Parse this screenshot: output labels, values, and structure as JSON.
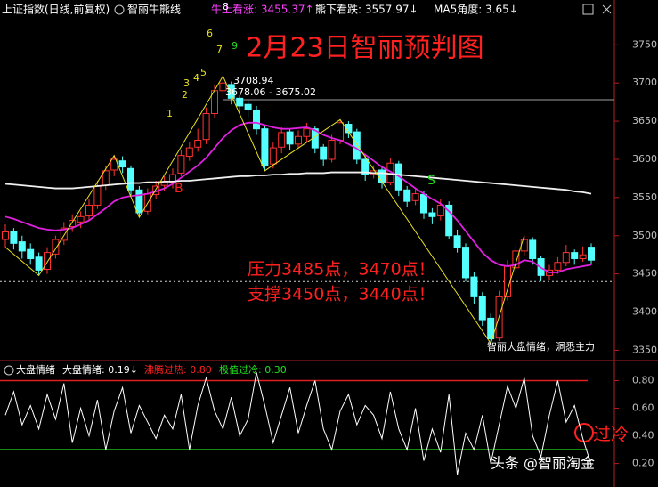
{
  "header": {
    "index_name": "上证指数(日线,前复权)",
    "indicator": "智丽牛熊线",
    "bull": "牛上看涨: 3455.37↑",
    "bear": "熊下看跌: 3557.97↓",
    "ma5": "MA5角度: 3.65↓"
  },
  "chart_data": [
    {
      "type": "candlestick",
      "title": "2月23日智丽预判图",
      "title_color": "#ff2020",
      "ylim": [
        3340,
        3783
      ],
      "yticks": [
        3350,
        3400,
        3450,
        3500,
        3550,
        3600,
        3650,
        3700,
        3750
      ],
      "up_color": "#ff3232",
      "down_color": "#54ffff",
      "ohlc": [
        [
          3495,
          3515,
          3485,
          3505
        ],
        [
          3505,
          3510,
          3482,
          3490
        ],
        [
          3492,
          3500,
          3470,
          3480
        ],
        [
          3482,
          3490,
          3462,
          3470
        ],
        [
          3472,
          3478,
          3448,
          3455
        ],
        [
          3456,
          3485,
          3450,
          3478
        ],
        [
          3476,
          3500,
          3470,
          3495
        ],
        [
          3494,
          3518,
          3488,
          3510
        ],
        [
          3512,
          3528,
          3505,
          3520
        ],
        [
          3518,
          3532,
          3510,
          3525
        ],
        [
          3526,
          3548,
          3520,
          3540
        ],
        [
          3540,
          3572,
          3535,
          3565
        ],
        [
          3566,
          3592,
          3560,
          3585
        ],
        [
          3586,
          3605,
          3578,
          3600
        ],
        [
          3598,
          3604,
          3582,
          3590
        ],
        [
          3588,
          3592,
          3552,
          3560
        ],
        [
          3560,
          3565,
          3524,
          3530
        ],
        [
          3532,
          3562,
          3528,
          3555
        ],
        [
          3554,
          3572,
          3548,
          3565
        ],
        [
          3566,
          3578,
          3558,
          3570
        ],
        [
          3570,
          3588,
          3562,
          3580
        ],
        [
          3582,
          3612,
          3578,
          3605
        ],
        [
          3604,
          3622,
          3598,
          3615
        ],
        [
          3616,
          3640,
          3610,
          3625
        ],
        [
          3626,
          3668,
          3620,
          3660
        ],
        [
          3660,
          3698,
          3655,
          3690
        ],
        [
          3690,
          3709,
          3680,
          3700
        ],
        [
          3698,
          3702,
          3672,
          3680
        ],
        [
          3680,
          3684,
          3660,
          3670
        ],
        [
          3672,
          3678,
          3655,
          3665
        ],
        [
          3664,
          3670,
          3632,
          3640
        ],
        [
          3640,
          3645,
          3585,
          3592
        ],
        [
          3594,
          3622,
          3588,
          3615
        ],
        [
          3616,
          3642,
          3608,
          3635
        ],
        [
          3636,
          3640,
          3612,
          3620
        ],
        [
          3620,
          3638,
          3615,
          3630
        ],
        [
          3630,
          3648,
          3622,
          3640
        ],
        [
          3640,
          3644,
          3608,
          3615
        ],
        [
          3616,
          3620,
          3592,
          3600
        ],
        [
          3600,
          3632,
          3596,
          3625
        ],
        [
          3625,
          3652,
          3620,
          3648
        ],
        [
          3646,
          3650,
          3628,
          3635
        ],
        [
          3636,
          3640,
          3594,
          3600
        ],
        [
          3600,
          3606,
          3572,
          3580
        ],
        [
          3580,
          3592,
          3575,
          3585
        ],
        [
          3586,
          3590,
          3562,
          3570
        ],
        [
          3570,
          3602,
          3566,
          3595
        ],
        [
          3594,
          3598,
          3552,
          3560
        ],
        [
          3560,
          3565,
          3538,
          3545
        ],
        [
          3546,
          3562,
          3540,
          3555
        ],
        [
          3554,
          3558,
          3522,
          3530
        ],
        [
          3530,
          3536,
          3515,
          3525
        ],
        [
          3526,
          3548,
          3520,
          3540
        ],
        [
          3540,
          3545,
          3495,
          3500
        ],
        [
          3500,
          3508,
          3478,
          3485
        ],
        [
          3485,
          3490,
          3440,
          3445
        ],
        [
          3446,
          3452,
          3410,
          3420
        ],
        [
          3420,
          3426,
          3382,
          3390
        ],
        [
          3392,
          3398,
          3359,
          3365
        ],
        [
          3366,
          3428,
          3362,
          3420
        ],
        [
          3420,
          3468,
          3415,
          3460
        ],
        [
          3458,
          3488,
          3452,
          3480
        ],
        [
          3480,
          3500,
          3474,
          3495
        ],
        [
          3494,
          3498,
          3462,
          3470
        ],
        [
          3470,
          3474,
          3440,
          3448
        ],
        [
          3448,
          3462,
          3442,
          3455
        ],
        [
          3455,
          3472,
          3450,
          3465
        ],
        [
          3465,
          3488,
          3460,
          3478
        ],
        [
          3478,
          3482,
          3462,
          3470
        ],
        [
          3470,
          3486,
          3466,
          3475
        ],
        [
          3485,
          3490,
          3462,
          3468
        ]
      ],
      "lines": [
        {
          "color": "#e020e0",
          "values": [
            3525,
            3522,
            3518,
            3514,
            3510,
            3508,
            3507,
            3508,
            3510,
            3515,
            3520,
            3528,
            3536,
            3545,
            3550,
            3552,
            3553,
            3555,
            3558,
            3562,
            3568,
            3576,
            3584,
            3592,
            3602,
            3615,
            3628,
            3638,
            3645,
            3648,
            3648,
            3645,
            3642,
            3640,
            3640,
            3641,
            3642,
            3638,
            3632,
            3628,
            3625,
            3620,
            3614,
            3606,
            3598,
            3590,
            3584,
            3578,
            3570,
            3562,
            3555,
            3548,
            3542,
            3532,
            3520,
            3506,
            3492,
            3478,
            3468,
            3462,
            3460,
            3462,
            3468,
            3466,
            3458,
            3452,
            3452,
            3456,
            3458,
            3460,
            3462
          ]
        },
        {
          "color": "#f0f0f0",
          "values": [
            3568,
            3567,
            3566,
            3565,
            3564,
            3563,
            3562,
            3562,
            3562,
            3563,
            3564,
            3565,
            3566,
            3567,
            3568,
            3569,
            3569,
            3570,
            3570,
            3571,
            3571,
            3572,
            3572,
            3573,
            3574,
            3575,
            3576,
            3577,
            3578,
            3578,
            3579,
            3579,
            3580,
            3580,
            3581,
            3581,
            3582,
            3582,
            3582,
            3583,
            3583,
            3583,
            3583,
            3583,
            3582,
            3582,
            3581,
            3580,
            3579,
            3578,
            3577,
            3576,
            3575,
            3574,
            3573,
            3572,
            3571,
            3570,
            3569,
            3568,
            3567,
            3566,
            3565,
            3564,
            3563,
            3562,
            3561,
            3560,
            3558,
            3557,
            3555
          ]
        }
      ],
      "zigzag": {
        "color": "#e8e020",
        "x": [
          0,
          4,
          13,
          16,
          26,
          31,
          40,
          58,
          62
        ],
        "values": [
          3485,
          3448,
          3605,
          3524,
          3709,
          3585,
          3652,
          3359,
          3500
        ]
      },
      "ref_lines": [
        {
          "value": 3678.06,
          "color": "#a0a0a0",
          "style": "solid"
        },
        {
          "value": 3440,
          "color": "#d0d0d0",
          "style": "dotted"
        }
      ],
      "annotations": [
        {
          "text": "3708.94",
          "color": "#ffffff"
        },
        {
          "text": "3678.06 - 3675.02",
          "color": "#ffffff"
        },
        {
          "text": "压力3485点，3470点！",
          "color": "#ff2020"
        },
        {
          "text": "支撑3450点，3440点！",
          "color": "#ff2020"
        },
        {
          "text": "智丽大盘情绪，洞悉主力",
          "color": "#ffffff"
        },
        {
          "text": "B",
          "color": "#ff2020"
        },
        {
          "text": "S",
          "color": "#20e020"
        },
        {
          "text": "1",
          "color": "#e8e020"
        },
        {
          "text": "2",
          "color": "#e8e020"
        },
        {
          "text": "3",
          "color": "#e8e020"
        },
        {
          "text": "4",
          "color": "#e8e020"
        },
        {
          "text": "5",
          "color": "#e8e020"
        },
        {
          "text": "6",
          "color": "#e8e020"
        },
        {
          "text": "7",
          "color": "#e8e020"
        },
        {
          "text": "8",
          "color": "#ffffff"
        },
        {
          "text": "9",
          "color": "#20e020"
        }
      ]
    },
    {
      "type": "line",
      "title": "大盘情绪",
      "readouts": [
        {
          "text": "大盘情绪: 0.19↓",
          "color": "#ffffff"
        },
        {
          "text": "沸腾过热: 0.80",
          "color": "#ff2020"
        },
        {
          "text": "极值过冷: 0.30",
          "color": "#20e020"
        }
      ],
      "ylim": [
        0.03,
        0.9
      ],
      "yticks": [
        {
          "value": 0.8,
          "label": "0.80"
        },
        {
          "value": 0.6,
          "label": "0.60"
        },
        {
          "value": 0.4,
          "label": "0.40"
        },
        {
          "value": 0.2,
          "label": "0.20"
        }
      ],
      "series": [
        {
          "color": "#ffffff",
          "values": [
            0.55,
            0.72,
            0.48,
            0.62,
            0.45,
            0.7,
            0.52,
            0.78,
            0.35,
            0.6,
            0.4,
            0.66,
            0.3,
            0.58,
            0.75,
            0.42,
            0.62,
            0.5,
            0.38,
            0.55,
            0.45,
            0.7,
            0.3,
            0.62,
            0.82,
            0.58,
            0.45,
            0.68,
            0.4,
            0.52,
            0.86,
            0.62,
            0.35,
            0.55,
            0.75,
            0.42,
            0.62,
            0.8,
            0.45,
            0.3,
            0.58,
            0.7,
            0.48,
            0.62,
            0.55,
            0.38,
            0.72,
            0.45,
            0.3,
            0.6,
            0.22,
            0.45,
            0.28,
            0.7,
            0.12,
            0.42,
            0.3,
            0.55,
            0.2,
            0.48,
            0.76,
            0.6,
            0.82,
            0.4,
            0.25,
            0.55,
            0.8,
            0.5,
            0.62,
            0.38,
            0.19
          ]
        }
      ],
      "hlines": [
        {
          "value": 0.8,
          "color": "#e02020"
        },
        {
          "value": 0.3,
          "color": "#20e020"
        }
      ],
      "annotation": {
        "text": "过冷",
        "color": "#ff2020"
      }
    }
  ],
  "watermark": "头条 @智丽淘金"
}
